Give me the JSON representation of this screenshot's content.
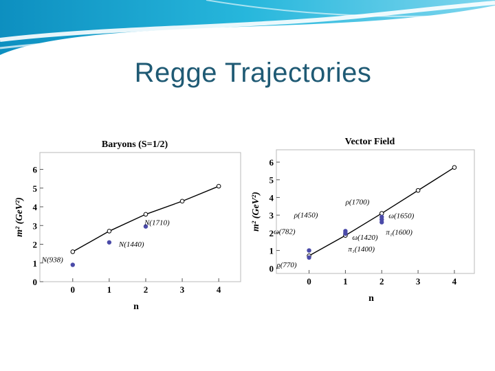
{
  "slide": {
    "title": "Regge Trajectories"
  },
  "colors": {
    "title": "#1f5a74",
    "header": "#1ea0c8",
    "marker": "#4a4aa8",
    "line": "#000000"
  },
  "chart_data": [
    {
      "type": "scatter",
      "title": "Baryons (S=1/2)",
      "xlabel": "n",
      "ylabel": "m² (GeV²)",
      "xlim": [
        -0.9,
        4.6
      ],
      "ylim": [
        0,
        6.9
      ],
      "xticks": [
        "0",
        "1",
        "2",
        "3",
        "4"
      ],
      "yticks": [
        "0",
        "1",
        "2",
        "3",
        "4",
        "5",
        "6"
      ],
      "trajectory": {
        "x": [
          0,
          1,
          2,
          3,
          4
        ],
        "y": [
          1.6,
          2.7,
          3.6,
          4.3,
          5.1
        ]
      },
      "points": [
        {
          "label": "N(938)",
          "x": 0,
          "y": 0.9
        },
        {
          "label": "N(1440)",
          "x": 1,
          "y": 2.1
        },
        {
          "label": "N(1710)",
          "x": 2,
          "y": 2.95
        }
      ]
    },
    {
      "type": "scatter",
      "title": "Vector Field",
      "xlabel": "n",
      "ylabel": "m² (GeV²)",
      "xlim": [
        -0.9,
        4.55
      ],
      "ylim": [
        -0.3,
        6.7
      ],
      "xticks": [
        "0",
        "1",
        "2",
        "3",
        "4"
      ],
      "yticks": [
        "0",
        "1",
        "2",
        "3",
        "4",
        "5",
        "6"
      ],
      "trajectory": {
        "x": [
          0,
          1,
          2,
          3,
          4
        ],
        "y": [
          0.7,
          1.85,
          3.1,
          4.4,
          5.7
        ]
      },
      "points": [
        {
          "label": "ρ(770)",
          "x": 0,
          "y": 0.6
        },
        {
          "label": "ω(782)",
          "x": 0,
          "y": 1.0
        },
        {
          "label": "ρ(1450)",
          "x": 1,
          "y": 2.1
        },
        {
          "label": "ω(1420)",
          "x": 1,
          "y": 2.0
        },
        {
          "label": "π₁(1400)",
          "x": 1,
          "y": 1.95
        },
        {
          "label": "ρ(1700)",
          "x": 2,
          "y": 2.9
        },
        {
          "label": "ω(1650)",
          "x": 2,
          "y": 2.75
        },
        {
          "label": "π₁(1600)",
          "x": 2,
          "y": 2.6
        }
      ]
    }
  ]
}
